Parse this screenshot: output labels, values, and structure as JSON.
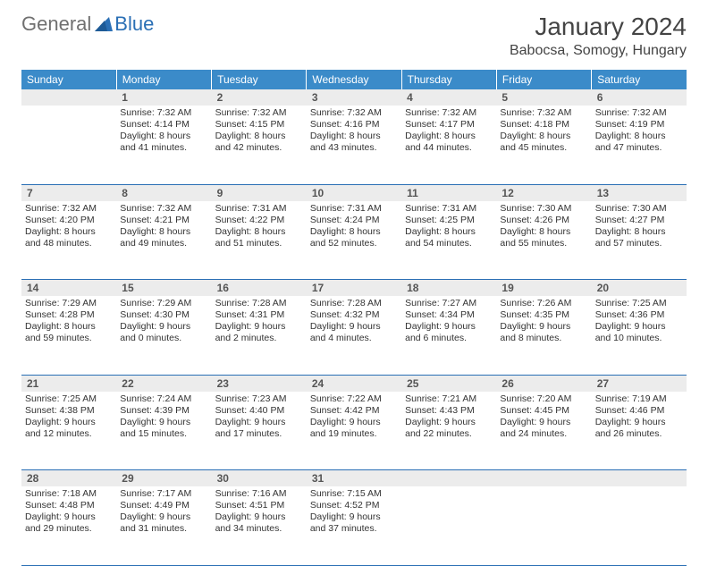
{
  "logo": {
    "general": "General",
    "blue": "Blue"
  },
  "title": "January 2024",
  "location": "Babocsa, Somogy, Hungary",
  "headers": [
    "Sunday",
    "Monday",
    "Tuesday",
    "Wednesday",
    "Thursday",
    "Friday",
    "Saturday"
  ],
  "colors": {
    "headerBg": "#3b8bc9",
    "headerText": "#ffffff",
    "dayNumBg": "#ececec",
    "border": "#2a6fb5",
    "logoGeneral": "#707070",
    "logoBlue": "#2a6fb5",
    "text": "#333333"
  },
  "weeks": [
    {
      "nums": [
        "",
        "1",
        "2",
        "3",
        "4",
        "5",
        "6"
      ],
      "cells": [
        {
          "sunrise": "",
          "sunset": "",
          "daylight": ""
        },
        {
          "sunrise": "Sunrise: 7:32 AM",
          "sunset": "Sunset: 4:14 PM",
          "daylight": "Daylight: 8 hours and 41 minutes."
        },
        {
          "sunrise": "Sunrise: 7:32 AM",
          "sunset": "Sunset: 4:15 PM",
          "daylight": "Daylight: 8 hours and 42 minutes."
        },
        {
          "sunrise": "Sunrise: 7:32 AM",
          "sunset": "Sunset: 4:16 PM",
          "daylight": "Daylight: 8 hours and 43 minutes."
        },
        {
          "sunrise": "Sunrise: 7:32 AM",
          "sunset": "Sunset: 4:17 PM",
          "daylight": "Daylight: 8 hours and 44 minutes."
        },
        {
          "sunrise": "Sunrise: 7:32 AM",
          "sunset": "Sunset: 4:18 PM",
          "daylight": "Daylight: 8 hours and 45 minutes."
        },
        {
          "sunrise": "Sunrise: 7:32 AM",
          "sunset": "Sunset: 4:19 PM",
          "daylight": "Daylight: 8 hours and 47 minutes."
        }
      ]
    },
    {
      "nums": [
        "7",
        "8",
        "9",
        "10",
        "11",
        "12",
        "13"
      ],
      "cells": [
        {
          "sunrise": "Sunrise: 7:32 AM",
          "sunset": "Sunset: 4:20 PM",
          "daylight": "Daylight: 8 hours and 48 minutes."
        },
        {
          "sunrise": "Sunrise: 7:32 AM",
          "sunset": "Sunset: 4:21 PM",
          "daylight": "Daylight: 8 hours and 49 minutes."
        },
        {
          "sunrise": "Sunrise: 7:31 AM",
          "sunset": "Sunset: 4:22 PM",
          "daylight": "Daylight: 8 hours and 51 minutes."
        },
        {
          "sunrise": "Sunrise: 7:31 AM",
          "sunset": "Sunset: 4:24 PM",
          "daylight": "Daylight: 8 hours and 52 minutes."
        },
        {
          "sunrise": "Sunrise: 7:31 AM",
          "sunset": "Sunset: 4:25 PM",
          "daylight": "Daylight: 8 hours and 54 minutes."
        },
        {
          "sunrise": "Sunrise: 7:30 AM",
          "sunset": "Sunset: 4:26 PM",
          "daylight": "Daylight: 8 hours and 55 minutes."
        },
        {
          "sunrise": "Sunrise: 7:30 AM",
          "sunset": "Sunset: 4:27 PM",
          "daylight": "Daylight: 8 hours and 57 minutes."
        }
      ]
    },
    {
      "nums": [
        "14",
        "15",
        "16",
        "17",
        "18",
        "19",
        "20"
      ],
      "cells": [
        {
          "sunrise": "Sunrise: 7:29 AM",
          "sunset": "Sunset: 4:28 PM",
          "daylight": "Daylight: 8 hours and 59 minutes."
        },
        {
          "sunrise": "Sunrise: 7:29 AM",
          "sunset": "Sunset: 4:30 PM",
          "daylight": "Daylight: 9 hours and 0 minutes."
        },
        {
          "sunrise": "Sunrise: 7:28 AM",
          "sunset": "Sunset: 4:31 PM",
          "daylight": "Daylight: 9 hours and 2 minutes."
        },
        {
          "sunrise": "Sunrise: 7:28 AM",
          "sunset": "Sunset: 4:32 PM",
          "daylight": "Daylight: 9 hours and 4 minutes."
        },
        {
          "sunrise": "Sunrise: 7:27 AM",
          "sunset": "Sunset: 4:34 PM",
          "daylight": "Daylight: 9 hours and 6 minutes."
        },
        {
          "sunrise": "Sunrise: 7:26 AM",
          "sunset": "Sunset: 4:35 PM",
          "daylight": "Daylight: 9 hours and 8 minutes."
        },
        {
          "sunrise": "Sunrise: 7:25 AM",
          "sunset": "Sunset: 4:36 PM",
          "daylight": "Daylight: 9 hours and 10 minutes."
        }
      ]
    },
    {
      "nums": [
        "21",
        "22",
        "23",
        "24",
        "25",
        "26",
        "27"
      ],
      "cells": [
        {
          "sunrise": "Sunrise: 7:25 AM",
          "sunset": "Sunset: 4:38 PM",
          "daylight": "Daylight: 9 hours and 12 minutes."
        },
        {
          "sunrise": "Sunrise: 7:24 AM",
          "sunset": "Sunset: 4:39 PM",
          "daylight": "Daylight: 9 hours and 15 minutes."
        },
        {
          "sunrise": "Sunrise: 7:23 AM",
          "sunset": "Sunset: 4:40 PM",
          "daylight": "Daylight: 9 hours and 17 minutes."
        },
        {
          "sunrise": "Sunrise: 7:22 AM",
          "sunset": "Sunset: 4:42 PM",
          "daylight": "Daylight: 9 hours and 19 minutes."
        },
        {
          "sunrise": "Sunrise: 7:21 AM",
          "sunset": "Sunset: 4:43 PM",
          "daylight": "Daylight: 9 hours and 22 minutes."
        },
        {
          "sunrise": "Sunrise: 7:20 AM",
          "sunset": "Sunset: 4:45 PM",
          "daylight": "Daylight: 9 hours and 24 minutes."
        },
        {
          "sunrise": "Sunrise: 7:19 AM",
          "sunset": "Sunset: 4:46 PM",
          "daylight": "Daylight: 9 hours and 26 minutes."
        }
      ]
    },
    {
      "nums": [
        "28",
        "29",
        "30",
        "31",
        "",
        "",
        ""
      ],
      "cells": [
        {
          "sunrise": "Sunrise: 7:18 AM",
          "sunset": "Sunset: 4:48 PM",
          "daylight": "Daylight: 9 hours and 29 minutes."
        },
        {
          "sunrise": "Sunrise: 7:17 AM",
          "sunset": "Sunset: 4:49 PM",
          "daylight": "Daylight: 9 hours and 31 minutes."
        },
        {
          "sunrise": "Sunrise: 7:16 AM",
          "sunset": "Sunset: 4:51 PM",
          "daylight": "Daylight: 9 hours and 34 minutes."
        },
        {
          "sunrise": "Sunrise: 7:15 AM",
          "sunset": "Sunset: 4:52 PM",
          "daylight": "Daylight: 9 hours and 37 minutes."
        },
        {
          "sunrise": "",
          "sunset": "",
          "daylight": ""
        },
        {
          "sunrise": "",
          "sunset": "",
          "daylight": ""
        },
        {
          "sunrise": "",
          "sunset": "",
          "daylight": ""
        }
      ]
    }
  ]
}
